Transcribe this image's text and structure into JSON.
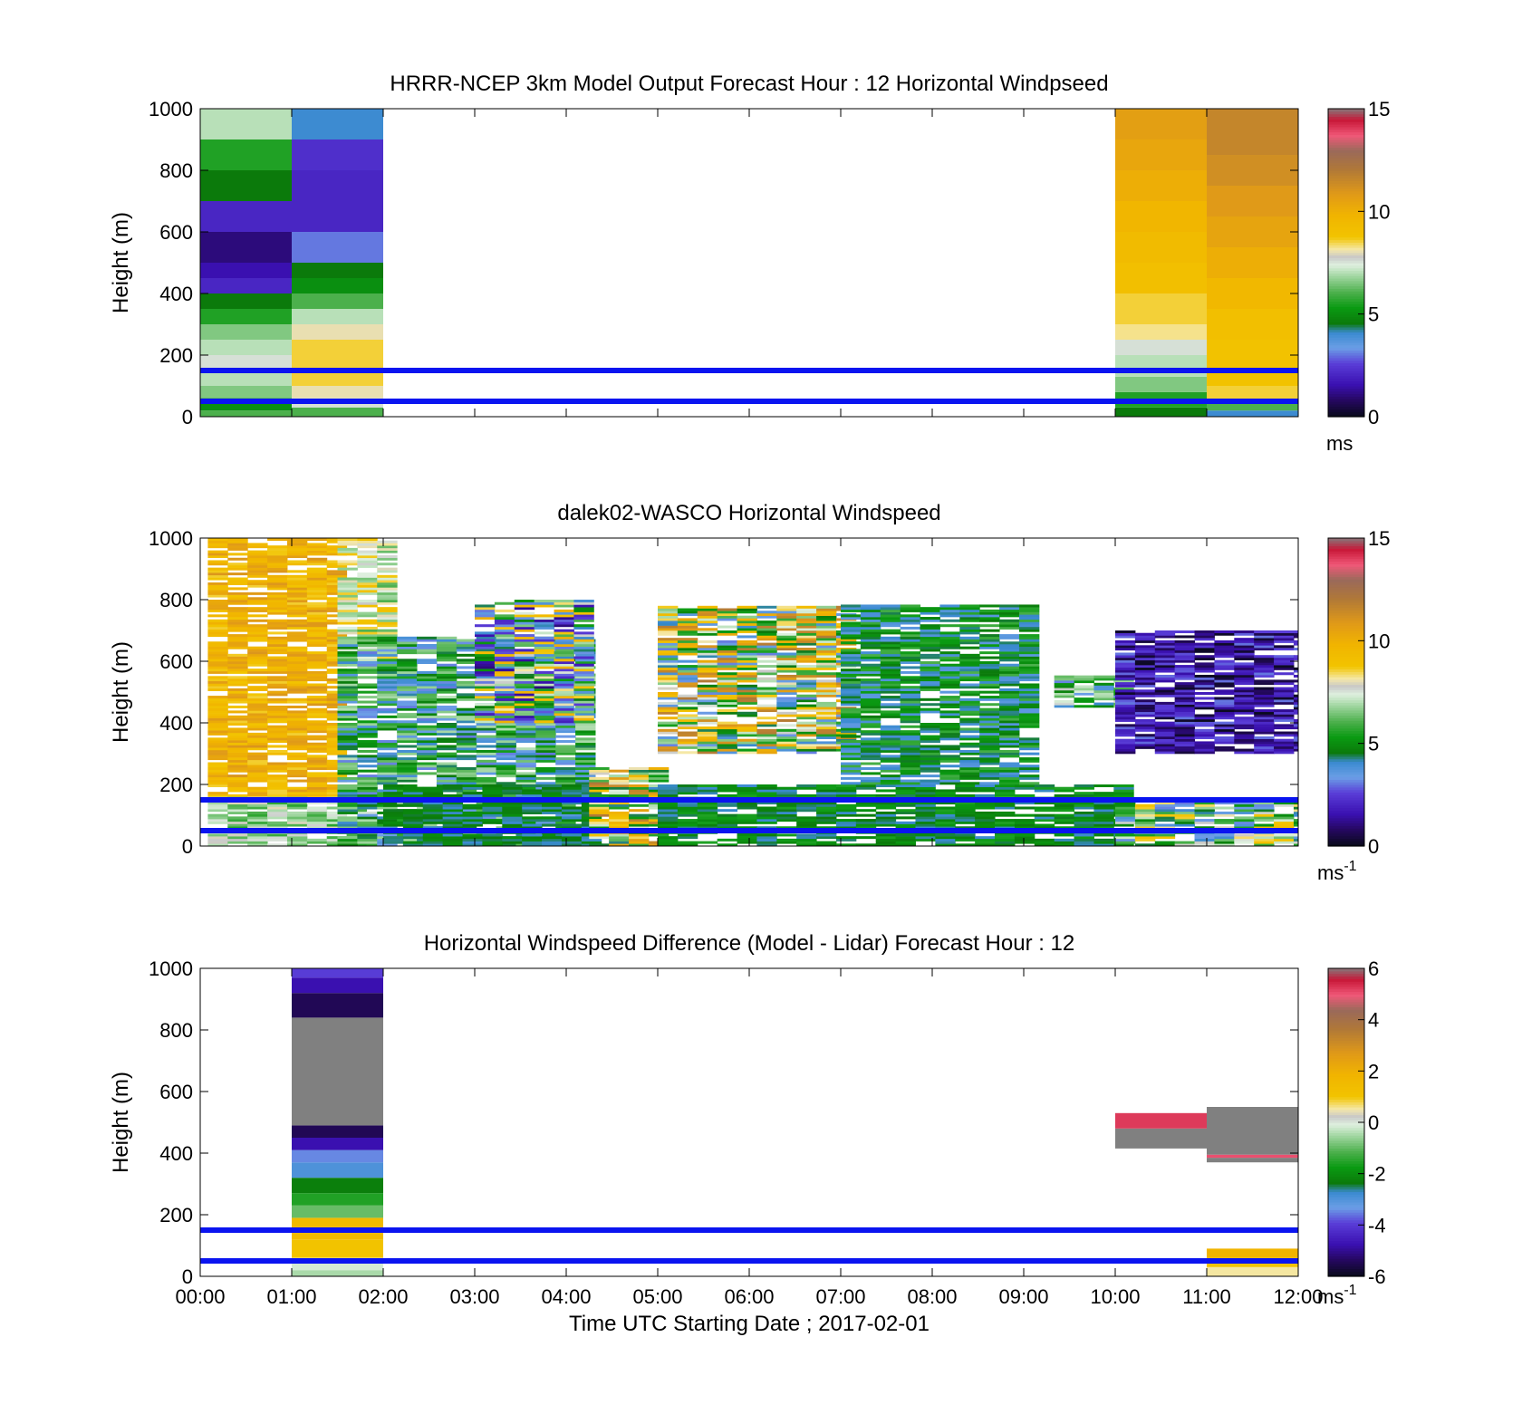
{
  "figure": {
    "xlabel": "Time UTC  Starting Date ; 2017-02-01",
    "x_ticks": [
      "00:00",
      "01:00",
      "02:00",
      "03:00",
      "04:00",
      "05:00",
      "06:00",
      "07:00",
      "08:00",
      "09:00",
      "10:00",
      "11:00",
      "12:00"
    ],
    "reference_lines": {
      "heights_m": [
        50,
        150
      ],
      "color": "#0a14f0"
    },
    "panels": [
      {
        "title": "HRRR-NCEP 3km Model Output   Forecast Hour : 12 Horizontal Windpseed",
        "ylabel": "Height (m)",
        "y_ticks": [
          "0",
          "200",
          "400",
          "600",
          "800",
          "1000"
        ],
        "colorbar": {
          "ticks": [
            "0",
            "5",
            "10",
            "15"
          ],
          "unit": "ms"
        }
      },
      {
        "title": "dalek02-WASCO  Horizontal Windspeed",
        "ylabel": "Height (m)",
        "y_ticks": [
          "0",
          "200",
          "400",
          "600",
          "800",
          "1000"
        ],
        "colorbar": {
          "ticks": [
            "0",
            "5",
            "10",
            "15"
          ],
          "unit": "ms",
          "unit_sup": "-1"
        }
      },
      {
        "title": "Horizontal Windspeed Difference (Model - Lidar) Forecast Hour : 12",
        "ylabel": "Height (m)",
        "y_ticks": [
          "0",
          "200",
          "400",
          "600",
          "800",
          "1000"
        ],
        "colorbar": {
          "ticks": [
            "-6",
            "-4",
            "-2",
            "0",
            "2",
            "4",
            "6"
          ],
          "unit": "ms",
          "unit_sup": "-1"
        }
      }
    ]
  },
  "chart_data": [
    {
      "type": "heatmap",
      "title": "HRRR-NCEP 3km Model Output   Forecast Hour : 12 Horizontal Windpseed",
      "xlabel": "",
      "ylabel": "Height (m)",
      "xlim": [
        "00:00",
        "12:00"
      ],
      "ylim": [
        0,
        1000
      ],
      "clim": [
        0,
        15
      ],
      "colorbar_unit": "ms",
      "columns": [
        {
          "t0": "00:00",
          "t1": "01:00",
          "layers": [
            {
              "z0": 0,
              "z1": 20,
              "v": 6
            },
            {
              "z0": 20,
              "z1": 60,
              "v": 5
            },
            {
              "z0": 60,
              "z1": 100,
              "v": 6.5
            },
            {
              "z0": 100,
              "z1": 150,
              "v": 7
            },
            {
              "z0": 150,
              "z1": 200,
              "v": 7.5
            },
            {
              "z0": 200,
              "z1": 250,
              "v": 7
            },
            {
              "z0": 250,
              "z1": 300,
              "v": 6.5
            },
            {
              "z0": 300,
              "z1": 350,
              "v": 5.5
            },
            {
              "z0": 350,
              "z1": 400,
              "v": 4.5
            },
            {
              "z0": 400,
              "z1": 450,
              "v": 2
            },
            {
              "z0": 450,
              "z1": 500,
              "v": 1.5
            },
            {
              "z0": 500,
              "z1": 600,
              "v": 1
            },
            {
              "z0": 600,
              "z1": 700,
              "v": 2
            },
            {
              "z0": 700,
              "z1": 800,
              "v": 4.5
            },
            {
              "z0": 800,
              "z1": 900,
              "v": 5.5
            },
            {
              "z0": 900,
              "z1": 1000,
              "v": 7
            }
          ]
        },
        {
          "t0": "01:00",
          "t1": "02:00",
          "layers": [
            {
              "z0": 0,
              "z1": 30,
              "v": 6
            },
            {
              "z0": 30,
              "z1": 60,
              "v": 7.5
            },
            {
              "z0": 60,
              "z1": 100,
              "v": 8
            },
            {
              "z0": 100,
              "z1": 150,
              "v": 8.5
            },
            {
              "z0": 150,
              "z1": 250,
              "v": 8.5
            },
            {
              "z0": 250,
              "z1": 300,
              "v": 8
            },
            {
              "z0": 300,
              "z1": 350,
              "v": 7
            },
            {
              "z0": 350,
              "z1": 400,
              "v": 6
            },
            {
              "z0": 400,
              "z1": 450,
              "v": 5
            },
            {
              "z0": 450,
              "z1": 500,
              "v": 4.5
            },
            {
              "z0": 500,
              "z1": 600,
              "v": 3
            },
            {
              "z0": 600,
              "z1": 700,
              "v": 2
            },
            {
              "z0": 700,
              "z1": 800,
              "v": 2
            },
            {
              "z0": 800,
              "z1": 900,
              "v": 2.2
            },
            {
              "z0": 900,
              "z1": 1000,
              "v": 4
            }
          ]
        },
        {
          "t0": "10:00",
          "t1": "11:00",
          "layers": [
            {
              "z0": 0,
              "z1": 30,
              "v": 4.5
            },
            {
              "z0": 30,
              "z1": 80,
              "v": 5.5
            },
            {
              "z0": 80,
              "z1": 130,
              "v": 6.5
            },
            {
              "z0": 130,
              "z1": 200,
              "v": 7
            },
            {
              "z0": 200,
              "z1": 250,
              "v": 7.5
            },
            {
              "z0": 250,
              "z1": 300,
              "v": 8.2
            },
            {
              "z0": 300,
              "z1": 400,
              "v": 8.5
            },
            {
              "z0": 400,
              "z1": 500,
              "v": 9
            },
            {
              "z0": 500,
              "z1": 600,
              "v": 9.3
            },
            {
              "z0": 600,
              "z1": 700,
              "v": 9.6
            },
            {
              "z0": 700,
              "z1": 800,
              "v": 10
            },
            {
              "z0": 800,
              "z1": 900,
              "v": 10.3
            },
            {
              "z0": 900,
              "z1": 1000,
              "v": 10.6
            }
          ]
        },
        {
          "t0": "11:00",
          "t1": "12:00",
          "layers": [
            {
              "z0": 0,
              "z1": 20,
              "v": 4
            },
            {
              "z0": 20,
              "z1": 50,
              "v": 6
            },
            {
              "z0": 50,
              "z1": 100,
              "v": 8.5
            },
            {
              "z0": 100,
              "z1": 150,
              "v": 8.8
            },
            {
              "z0": 150,
              "z1": 250,
              "v": 8.8
            },
            {
              "z0": 250,
              "z1": 350,
              "v": 9
            },
            {
              "z0": 350,
              "z1": 450,
              "v": 9.5
            },
            {
              "z0": 450,
              "z1": 550,
              "v": 10
            },
            {
              "z0": 550,
              "z1": 650,
              "v": 10.4
            },
            {
              "z0": 650,
              "z1": 750,
              "v": 10.8
            },
            {
              "z0": 750,
              "z1": 850,
              "v": 11.2
            },
            {
              "z0": 850,
              "z1": 1000,
              "v": 11.5
            }
          ]
        }
      ]
    },
    {
      "type": "heatmap",
      "title": "dalek02-WASCO  Horizontal Windspeed",
      "xlabel": "",
      "ylabel": "Height (m)",
      "xlim": [
        "00:00",
        "12:00"
      ],
      "ylim": [
        0,
        1000
      ],
      "clim": [
        0,
        15
      ],
      "colorbar_unit": "ms^-1",
      "regions": [
        {
          "t0": "00:05",
          "t1": "01:30",
          "z0": 160,
          "z1": 1000,
          "v_min": 8.5,
          "v_max": 11
        },
        {
          "t0": "00:05",
          "t1": "02:00",
          "z0": 0,
          "z1": 160,
          "v_min": 5.5,
          "v_max": 8
        },
        {
          "t0": "01:30",
          "t1": "02:00",
          "z0": 600,
          "z1": 1000,
          "v_min": 6,
          "v_max": 9
        },
        {
          "t0": "01:30",
          "t1": "04:15",
          "z0": 0,
          "z1": 680,
          "v_min": 3,
          "v_max": 7
        },
        {
          "t0": "02:00",
          "t1": "04:15",
          "z0": 0,
          "z1": 200,
          "v_min": 4,
          "v_max": 5
        },
        {
          "t0": "03:00",
          "t1": "04:15",
          "z0": 400,
          "z1": 800,
          "v_min": 1,
          "v_max": 10
        },
        {
          "t0": "04:15",
          "t1": "05:00",
          "z0": 0,
          "z1": 250,
          "v_min": 4,
          "v_max": 12
        },
        {
          "t0": "05:00",
          "t1": "10:00",
          "z0": 0,
          "z1": 200,
          "v_min": 4,
          "v_max": 5.5
        },
        {
          "t0": "05:00",
          "t1": "07:00",
          "z0": 300,
          "z1": 780,
          "v_min": 3,
          "v_max": 12
        },
        {
          "t0": "07:00",
          "t1": "09:10",
          "z0": 200,
          "z1": 780,
          "v_min": 3.5,
          "v_max": 6
        },
        {
          "t0": "09:20",
          "t1": "10:00",
          "z0": 450,
          "z1": 550,
          "v_min": 3,
          "v_max": 8
        },
        {
          "t0": "10:00",
          "t1": "12:00",
          "z0": 300,
          "z1": 700,
          "v_min": 0,
          "v_max": 3
        },
        {
          "t0": "10:00",
          "t1": "12:00",
          "z0": 0,
          "z1": 150,
          "v_min": 3,
          "v_max": 9
        }
      ]
    },
    {
      "type": "heatmap",
      "title": "Horizontal Windspeed Difference (Model - Lidar) Forecast Hour : 12",
      "xlabel": "Time UTC  Starting Date ; 2017-02-01",
      "ylabel": "Height (m)",
      "xlim": [
        "00:00",
        "12:00"
      ],
      "ylim": [
        0,
        1000
      ],
      "clim": [
        -6,
        6
      ],
      "colorbar_unit": "ms^-1",
      "columns": [
        {
          "t0": "01:00",
          "t1": "02:00",
          "layers": [
            {
              "z0": 0,
              "z1": 20,
              "v": -0.5
            },
            {
              "z0": 20,
              "z1": 60,
              "v": -0.2
            },
            {
              "z0": 60,
              "z1": 120,
              "v": 1
            },
            {
              "z0": 120,
              "z1": 190,
              "v": 1.5
            },
            {
              "z0": 190,
              "z1": 230,
              "v": -1
            },
            {
              "z0": 230,
              "z1": 270,
              "v": -1.6
            },
            {
              "z0": 270,
              "z1": 320,
              "v": -2.3
            },
            {
              "z0": 320,
              "z1": 370,
              "v": -3
            },
            {
              "z0": 370,
              "z1": 410,
              "v": -3.5
            },
            {
              "z0": 410,
              "z1": 450,
              "v": -4.8
            },
            {
              "z0": 450,
              "z1": 490,
              "v": -5.5
            },
            {
              "z0": 490,
              "z1": 840,
              "v": null
            },
            {
              "z0": 840,
              "z1": 920,
              "v": -5.5
            },
            {
              "z0": 920,
              "z1": 970,
              "v": -4.8
            },
            {
              "z0": 970,
              "z1": 1000,
              "v": -4
            }
          ]
        },
        {
          "t0": "10:00",
          "t1": "11:00",
          "layers": [
            {
              "z0": 415,
              "z1": 480,
              "v": null
            },
            {
              "z0": 480,
              "z1": 530,
              "v": 5.2
            }
          ]
        },
        {
          "t0": "11:00",
          "t1": "12:00",
          "layers": [
            {
              "z0": 0,
              "z1": 30,
              "v": 0.5
            },
            {
              "z0": 30,
              "z1": 60,
              "v": 1
            },
            {
              "z0": 60,
              "z1": 90,
              "v": 1.8
            },
            {
              "z0": 370,
              "z1": 385,
              "v": null
            },
            {
              "z0": 385,
              "z1": 395,
              "v": 5
            },
            {
              "z0": 395,
              "z1": 550,
              "v": null
            }
          ]
        }
      ],
      "null_color": "#808080"
    }
  ]
}
